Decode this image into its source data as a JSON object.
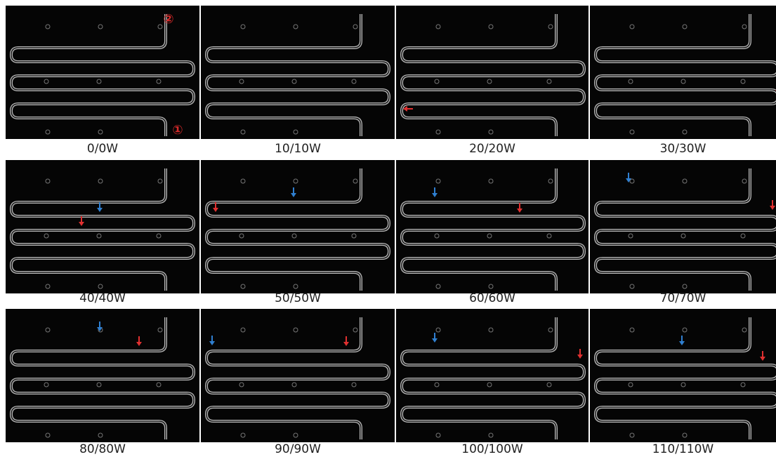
{
  "panels": [
    {
      "caption": "0/0W",
      "annotations": [
        "②",
        "①"
      ]
    },
    {
      "caption": "10/10W"
    },
    {
      "caption": "20/20W"
    },
    {
      "caption": "30/30W"
    },
    {
      "caption": "40/40W"
    },
    {
      "caption": "50/50W"
    },
    {
      "caption": "60/60W"
    },
    {
      "caption": "70/70W"
    },
    {
      "caption": "80/80W"
    },
    {
      "caption": "90/90W"
    },
    {
      "caption": "100/100W"
    },
    {
      "caption": "110/110W"
    }
  ]
}
